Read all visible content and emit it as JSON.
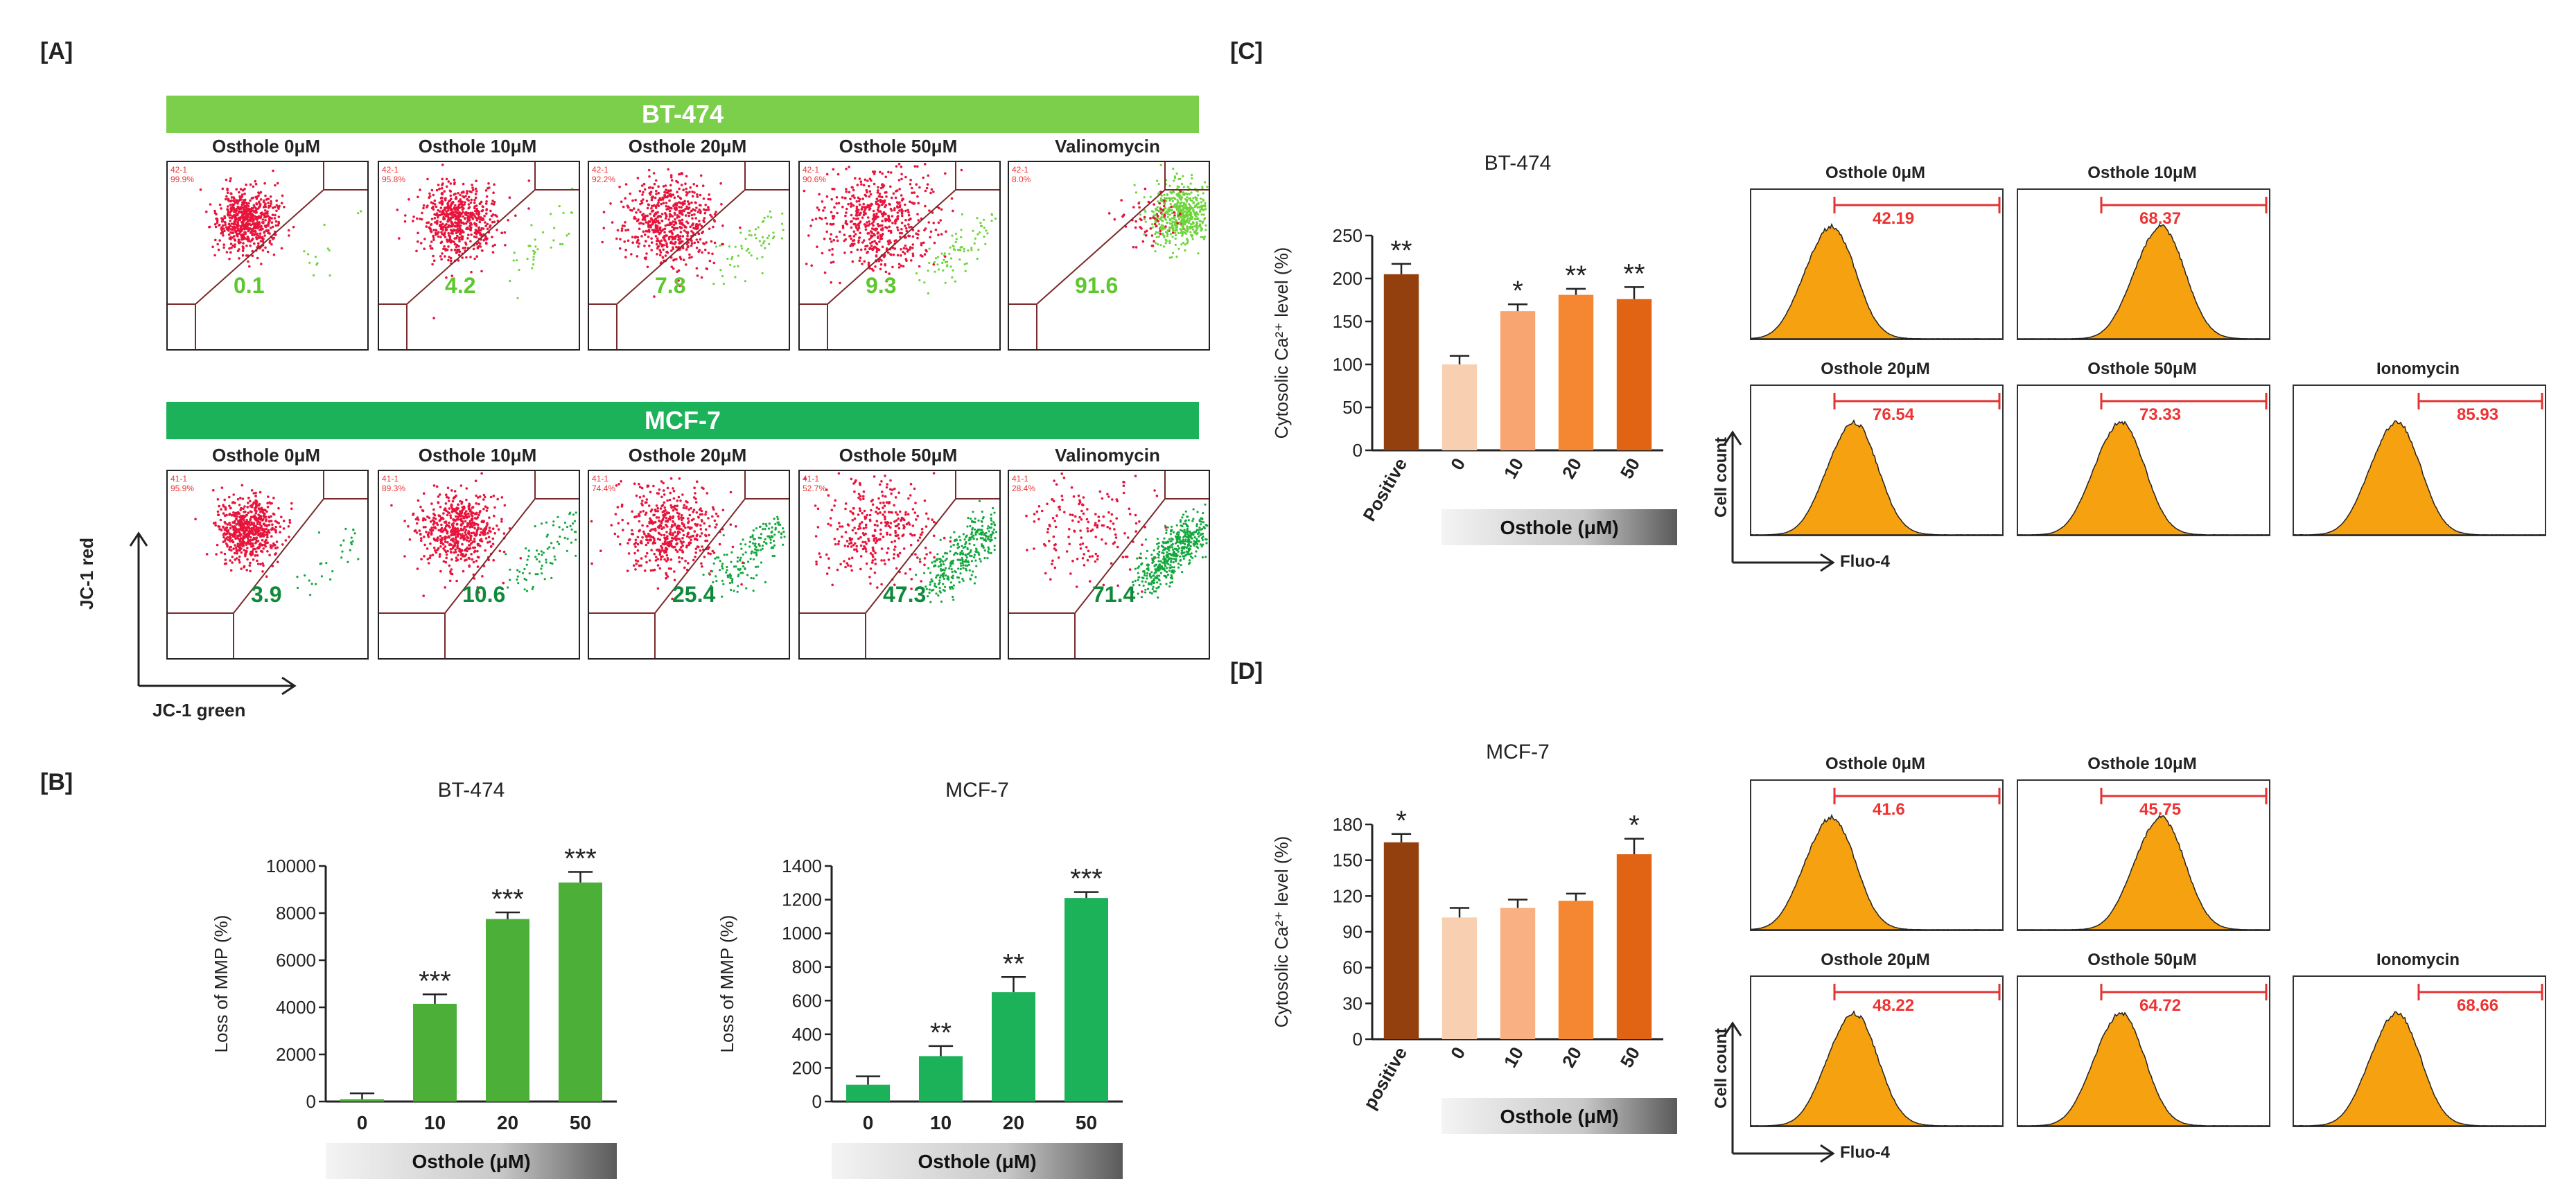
{
  "panels": {
    "A": "[A]",
    "B": "[B]",
    "C": "[C]",
    "D": "[D]"
  },
  "colors": {
    "bt474": "#7bcf4b",
    "mcf7": "#1cb25a",
    "red_dots": "#e8143c",
    "green_dots_light": "#6ed43b",
    "green_dots_dark": "#13a83e",
    "hist_fill": "#f6a10f",
    "gate_red": "#e33333"
  },
  "panelA": {
    "rows": [
      {
        "name": "BT-474",
        "banner_color": "#7bcf4b",
        "num_color": "#5ec72e",
        "plots": [
          {
            "title": "Osthole 0μM",
            "value": "0.1",
            "pct": [
              "42-1",
              "99.9%"
            ]
          },
          {
            "title": "Osthole 10μM",
            "value": "4.2",
            "pct": [
              "42-1",
              "95.8%"
            ]
          },
          {
            "title": "Osthole 20μM",
            "value": "7.8",
            "pct": [
              "42-1",
              "92.2%"
            ]
          },
          {
            "title": "Osthole 50μM",
            "value": "9.3",
            "pct": [
              "42-1",
              "90.6%"
            ]
          },
          {
            "title": "Valinomycin",
            "value": "91.6",
            "pct": [
              "42-1",
              "8.0%"
            ]
          }
        ]
      },
      {
        "name": "MCF-7",
        "banner_color": "#1cb25a",
        "num_color": "#10893a",
        "plots": [
          {
            "title": "Osthole 0μM",
            "value": "3.9",
            "pct": [
              "41-1",
              "95.9%"
            ]
          },
          {
            "title": "Osthole 10μM",
            "value": "10.6",
            "pct": [
              "41-1",
              "89.3%"
            ]
          },
          {
            "title": "Osthole 20μM",
            "value": "25.4",
            "pct": [
              "41-1",
              "74.4%"
            ]
          },
          {
            "title": "Osthole 50μM",
            "value": "47.3",
            "pct": [
              "41-1",
              "52.7%"
            ]
          },
          {
            "title": "Valinomycin",
            "value": "71.4",
            "pct": [
              "41-1",
              "28.4%"
            ]
          }
        ]
      }
    ],
    "y_axis": "JC-1 red",
    "x_axis": "JC-1 green"
  },
  "chart_data": [
    {
      "id": "B-BT474",
      "type": "bar",
      "title": "BT-474",
      "ylabel": "Loss of MMP (%)",
      "categories": [
        "0",
        "10",
        "20",
        "50"
      ],
      "values": [
        100,
        4150,
        7750,
        9300
      ],
      "errors": [
        250,
        400,
        280,
        450
      ],
      "sig": [
        "",
        "***",
        "***",
        "***"
      ],
      "ylim": [
        0,
        10000
      ],
      "yticks": [
        0,
        2000,
        4000,
        6000,
        8000,
        10000
      ],
      "xlabel": "Osthole (μM)",
      "bar_colors": [
        "#4caf38",
        "#4caf38",
        "#4caf38",
        "#4caf38"
      ]
    },
    {
      "id": "B-MCF7",
      "type": "bar",
      "title": "MCF-7",
      "ylabel": "Loss of MMP (%)",
      "categories": [
        "0",
        "10",
        "20",
        "50"
      ],
      "values": [
        100,
        270,
        650,
        1210
      ],
      "errors": [
        50,
        60,
        90,
        35
      ],
      "sig": [
        "",
        "**",
        "**",
        "***"
      ],
      "ylim": [
        0,
        1400
      ],
      "yticks": [
        0,
        200,
        400,
        600,
        800,
        1000,
        1200,
        1400
      ],
      "xlabel": "Osthole (μM)",
      "bar_colors": [
        "#1cb25a",
        "#1cb25a",
        "#1cb25a",
        "#1cb25a"
      ]
    },
    {
      "id": "C-bar",
      "type": "bar",
      "title": "BT-474",
      "ylabel": "Cytosolic Ca²⁺ level (%)",
      "categories": [
        "Positive",
        "0",
        "10",
        "20",
        "50"
      ],
      "values": [
        205,
        100,
        162,
        181,
        176
      ],
      "errors": [
        12,
        10,
        8,
        7,
        14
      ],
      "sig": [
        "**",
        "",
        "*",
        "**",
        "**"
      ],
      "ylim": [
        0,
        250
      ],
      "yticks": [
        0,
        50,
        100,
        150,
        200,
        250
      ],
      "xlabel": "Osthole (μM)",
      "bar_colors": [
        "#93400e",
        "#f8cfb0",
        "#f9a572",
        "#f58632",
        "#e06414"
      ]
    },
    {
      "id": "D-bar",
      "type": "bar",
      "title": "MCF-7",
      "ylabel": "Cytosolic Ca²⁺ level (%)",
      "categories": [
        "positive",
        "0",
        "10",
        "20",
        "50"
      ],
      "values": [
        165,
        102,
        110,
        116,
        155
      ],
      "errors": [
        7,
        8,
        7,
        6,
        13
      ],
      "sig": [
        "*",
        "",
        "",
        "",
        "*"
      ],
      "ylim": [
        0,
        180
      ],
      "yticks": [
        0,
        30,
        60,
        90,
        120,
        150,
        180
      ],
      "xlabel": "Osthole (μM)",
      "bar_colors": [
        "#93400e",
        "#f8cfb0",
        "#f9b083",
        "#f58632",
        "#e06414"
      ]
    }
  ],
  "panelC_hist": {
    "plots": [
      {
        "title": "Osthole 0μM",
        "value": "42.19"
      },
      {
        "title": "Osthole 10μM",
        "value": "68.37"
      },
      {
        "title": "Osthole 20μM",
        "value": "76.54"
      },
      {
        "title": "Osthole 50μM",
        "value": "73.33"
      },
      {
        "title": "Ionomycin",
        "value": "85.93"
      }
    ],
    "y_axis": "Cell count",
    "x_axis": "Fluo-4"
  },
  "panelD_hist": {
    "plots": [
      {
        "title": "Osthole 0μM",
        "value": "41.6"
      },
      {
        "title": "Osthole 10μM",
        "value": "45.75"
      },
      {
        "title": "Osthole 20μM",
        "value": "48.22"
      },
      {
        "title": "Osthole 50μM",
        "value": "64.72"
      },
      {
        "title": "Ionomycin",
        "value": "68.66"
      }
    ],
    "y_axis": "Cell count",
    "x_axis": "Fluo-4"
  }
}
